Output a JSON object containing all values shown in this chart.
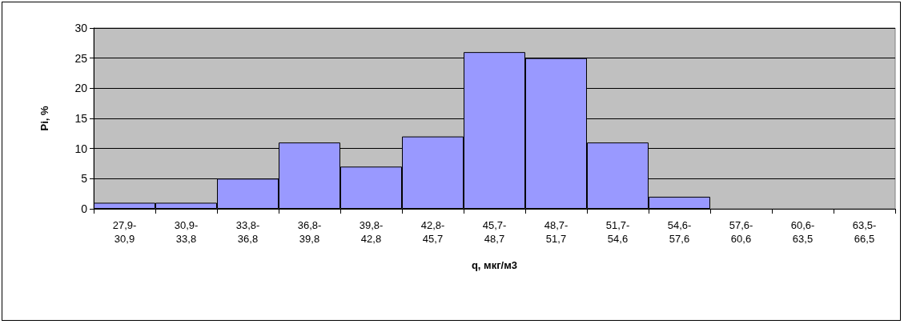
{
  "chart_data": {
    "type": "bar",
    "xlabel": "q, мкг/м3",
    "ylabel": "Pi, %",
    "categories": [
      "27,9-30,9",
      "30,9-33,8",
      "33,8-36,8",
      "36,8-39,8",
      "39,8-42,8",
      "42,8-45,7",
      "45,7-48,7",
      "48,7-51,7",
      "51,7-54,6",
      "54,6-57,6",
      "57,6-60,6",
      "60,6-63,5",
      "63,5-66,5"
    ],
    "values": [
      1,
      1,
      5,
      11,
      7,
      12,
      26,
      25,
      11,
      2,
      0,
      0,
      0
    ],
    "color": "#9999ff",
    "ylim": [
      0,
      30
    ],
    "yticks": [
      0,
      5,
      10,
      15,
      20,
      25,
      30
    ],
    "grid": "y"
  }
}
